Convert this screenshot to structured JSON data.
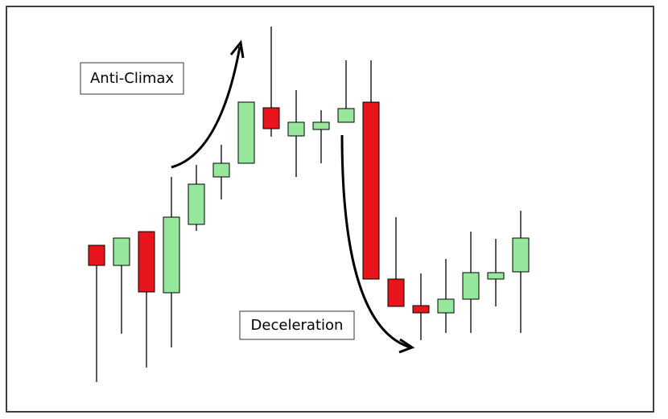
{
  "chart_data": {
    "type": "candlestick",
    "categories": [
      null,
      null,
      null,
      null,
      null,
      null,
      null,
      null,
      null,
      null,
      null,
      null,
      null,
      null,
      null,
      null,
      null,
      null
    ],
    "open": [
      195,
      170,
      212,
      136,
      221,
      280,
      297,
      366,
      331,
      339,
      348,
      373,
      153,
      120,
      111,
      128,
      153,
      162
    ],
    "high": [
      195,
      204,
      212,
      280,
      295,
      320,
      373,
      467,
      388,
      363,
      425,
      425,
      230,
      160,
      178,
      212,
      203,
      238
    ],
    "low": [
      25,
      85,
      43,
      68,
      213,
      252,
      297,
      330,
      280,
      297,
      348,
      153,
      119,
      77,
      86,
      86,
      119,
      86
    ],
    "close": [
      170,
      204,
      137,
      230,
      271,
      297,
      373,
      340,
      348,
      348,
      365,
      153,
      119,
      111,
      128,
      161,
      161,
      204
    ],
    "up_color": "#96e69c",
    "down_color": "#e8141c",
    "ylim": [
      0,
      500
    ],
    "annotations": [
      "Anti-Climax",
      "Deceleration"
    ]
  }
}
